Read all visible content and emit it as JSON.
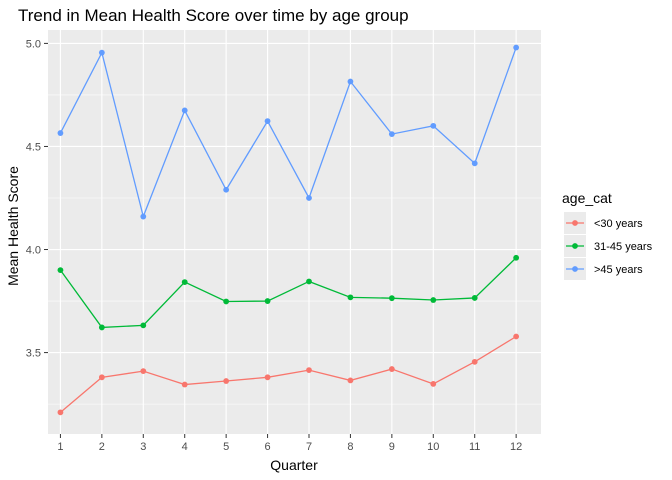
{
  "chart_data": {
    "type": "line",
    "title": "Trend in Mean Health Score over time by age group",
    "xlabel": "Quarter",
    "ylabel": "Mean Health Score",
    "x": [
      1,
      2,
      3,
      4,
      5,
      6,
      7,
      8,
      9,
      10,
      11,
      12
    ],
    "xlim": [
      0.7,
      12.6
    ],
    "ylim": [
      3.105,
      5.065
    ],
    "yticks": [
      3.5,
      4.0,
      4.5,
      5.0
    ],
    "ytick_labels": [
      "3.5",
      "4.0",
      "4.5",
      "5.0"
    ],
    "grid": true,
    "panel_background": "#ebebeb",
    "legend": {
      "title": "age_cat",
      "position": "right"
    },
    "series": [
      {
        "name": "<30 years",
        "color": "#F8766D",
        "values": [
          3.21,
          3.38,
          3.41,
          3.345,
          3.362,
          3.38,
          3.415,
          3.365,
          3.42,
          3.348,
          3.455,
          3.578
        ]
      },
      {
        "name": "31-45 years",
        "color": "#00BA38",
        "values": [
          3.9,
          3.622,
          3.632,
          3.842,
          3.748,
          3.75,
          3.845,
          3.768,
          3.764,
          3.755,
          3.765,
          3.96
        ]
      },
      {
        "name": ">45 years",
        "color": "#619CFF",
        "values": [
          4.565,
          4.955,
          4.16,
          4.675,
          4.29,
          4.623,
          4.25,
          4.815,
          4.56,
          4.6,
          4.418,
          4.98
        ]
      }
    ]
  }
}
